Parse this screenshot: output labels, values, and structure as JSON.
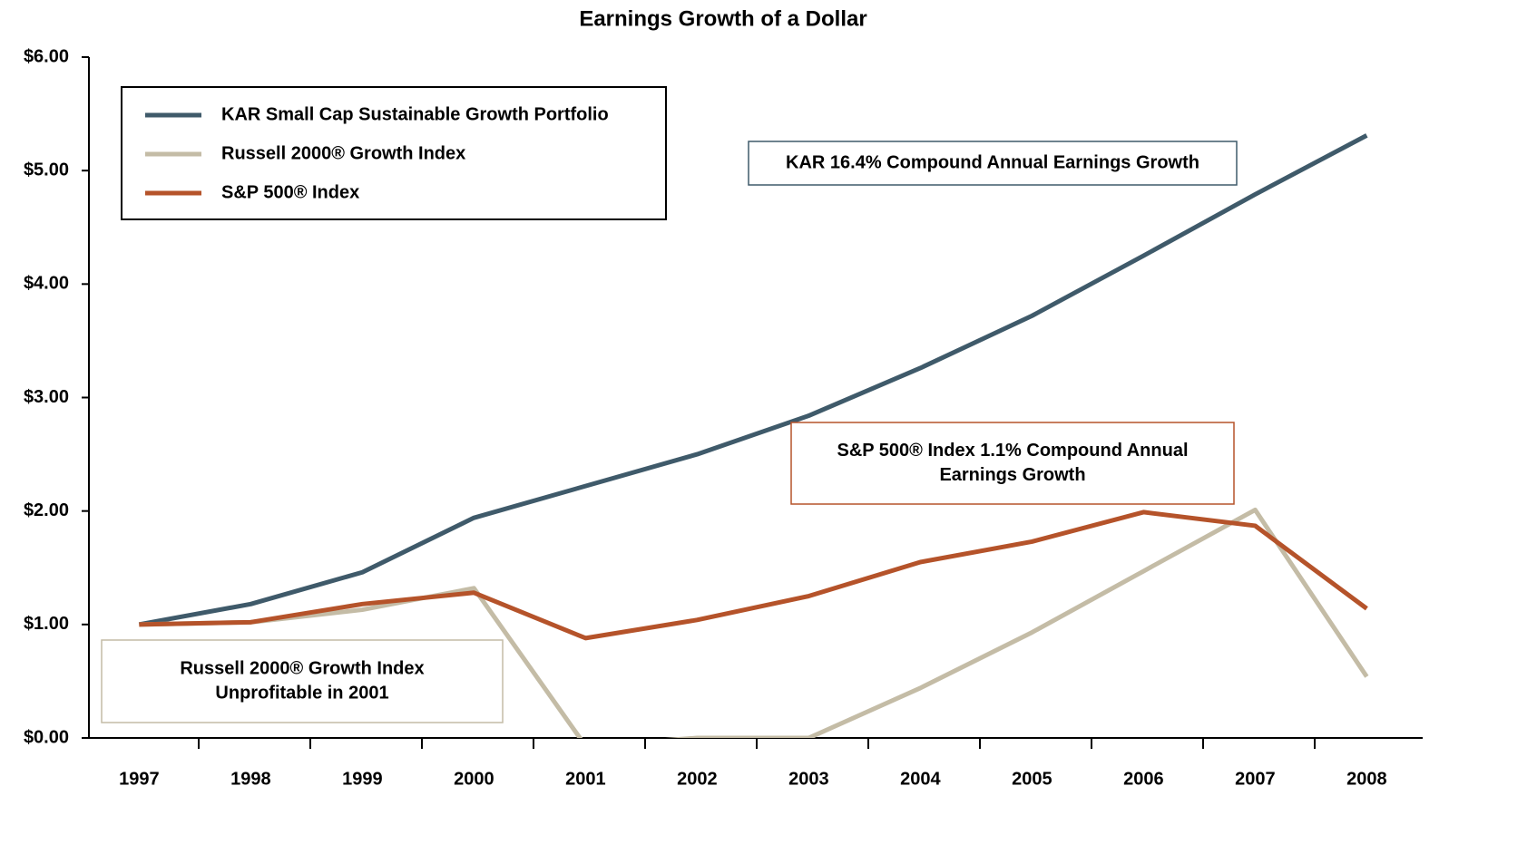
{
  "chart_data": {
    "type": "line",
    "title": "Earnings Growth of a Dollar",
    "categories": [
      "1997",
      "1998",
      "1999",
      "2000",
      "2001",
      "2002",
      "2003",
      "2004",
      "2005",
      "2006",
      "2007",
      "2008"
    ],
    "series": [
      {
        "name": "KAR Small Cap Sustainable Growth Portfolio",
        "color": "#3f5a6a",
        "values": [
          1.0,
          1.18,
          1.46,
          1.94,
          2.22,
          2.5,
          2.84,
          3.26,
          3.72,
          4.25,
          4.79,
          5.31
        ]
      },
      {
        "name": "Russell 2000® Growth Index",
        "color": "#c4bca6",
        "values": [
          1.0,
          1.02,
          1.13,
          1.32,
          -0.07,
          0.0,
          0.0,
          0.44,
          0.93,
          1.47,
          2.01,
          0.54
        ]
      },
      {
        "name": "S&P 500® Index",
        "color": "#b5532a",
        "values": [
          1.0,
          1.02,
          1.18,
          1.28,
          0.88,
          1.04,
          1.25,
          1.55,
          1.73,
          1.99,
          1.87,
          1.14
        ]
      }
    ],
    "ylim": [
      0,
      6
    ],
    "yticks": [
      {
        "value": 0,
        "label": "$0.00"
      },
      {
        "value": 1,
        "label": "$1.00"
      },
      {
        "value": 2,
        "label": "$2.00"
      },
      {
        "value": 3,
        "label": "$3.00"
      },
      {
        "value": 4,
        "label": "$4.00"
      },
      {
        "value": 5,
        "label": "$5.00"
      },
      {
        "value": 6,
        "label": "$6.00"
      }
    ],
    "grid": false,
    "legend_position": "upper left",
    "annotations": [
      {
        "lines": [
          "KAR 16.4% Compound Annual Earnings Growth"
        ],
        "color": "#3f5a6a"
      },
      {
        "lines": [
          "S&P 500® Index 1.1% Compound Annual",
          "Earnings Growth"
        ],
        "color": "#b5532a"
      },
      {
        "lines": [
          "Russell 2000® Growth Index",
          "Unprofitable in 2001"
        ],
        "color": "#c4bca6"
      }
    ]
  }
}
